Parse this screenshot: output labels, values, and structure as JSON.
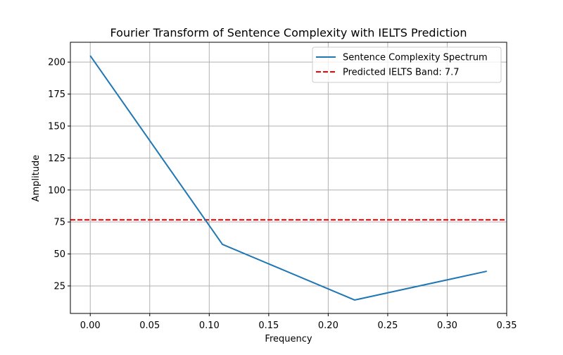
{
  "chart_data": {
    "type": "line",
    "title": "Fourier Transform of Sentence Complexity with IELTS Prediction",
    "xlabel": "Frequency",
    "ylabel": "Amplitude",
    "xlim": [
      -0.0167,
      0.35
    ],
    "ylim": [
      3.5,
      215.5
    ],
    "x_ticks": [
      0.0,
      0.05,
      0.1,
      0.15,
      0.2,
      0.25,
      0.3,
      0.35
    ],
    "x_tick_labels": [
      "0.00",
      "0.05",
      "0.10",
      "0.15",
      "0.20",
      "0.25",
      "0.30",
      "0.35"
    ],
    "y_ticks": [
      25,
      50,
      75,
      100,
      125,
      150,
      175,
      200
    ],
    "y_tick_labels": [
      "25",
      "50",
      "75",
      "100",
      "125",
      "150",
      "175",
      "200"
    ],
    "grid": true,
    "legend_position": "top-right",
    "series": [
      {
        "name": "Sentence Complexity Spectrum",
        "color": "#1f77b4",
        "style": "solid",
        "x": [
          0.0,
          0.1111,
          0.2222,
          0.3333
        ],
        "y": [
          205.0,
          57.5,
          14.0,
          36.5
        ]
      }
    ],
    "reference_lines": [
      {
        "name": "Predicted IELTS Band: 7.7",
        "orientation": "horizontal",
        "y": 76.7,
        "color": "#ff0000",
        "style": "dashed"
      }
    ]
  }
}
